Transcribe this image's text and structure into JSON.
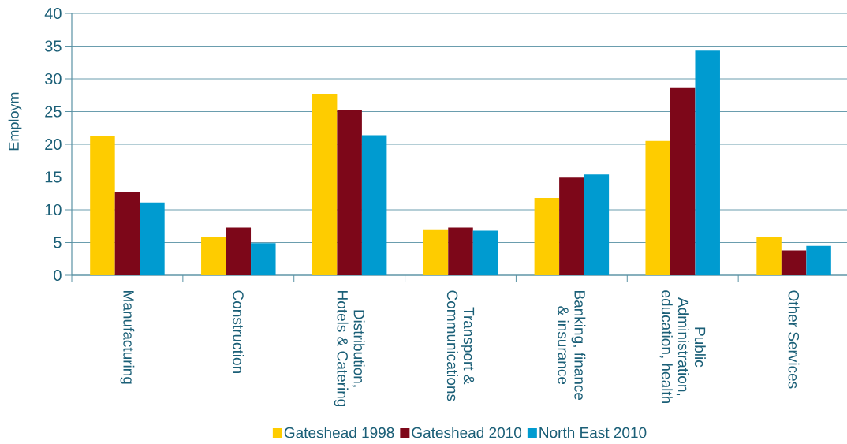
{
  "chart_data": {
    "type": "bar",
    "ylabel": "Employm",
    "categories": [
      "Manufacturing",
      "Construction",
      "Distribution, Hotels & Catering",
      "Transport & Communications",
      "Banking, finance & insurance",
      "Public Administration, education, health",
      "Other Services"
    ],
    "series": [
      {
        "name": "Gateshead 1998",
        "color": "#fecc00",
        "values": [
          21.2,
          5.9,
          27.7,
          6.9,
          11.8,
          20.5,
          5.9
        ]
      },
      {
        "name": "Gateshead 2010",
        "color": "#7d0719",
        "values": [
          12.7,
          7.3,
          25.3,
          7.3,
          14.9,
          28.7,
          3.8
        ]
      },
      {
        "name": "North East 2010",
        "color": "#009bd0",
        "values": [
          11.1,
          4.9,
          21.4,
          6.8,
          15.4,
          34.3,
          4.5
        ]
      }
    ],
    "ylim": [
      0,
      40
    ],
    "yticks": [
      0,
      5,
      10,
      15,
      20,
      25,
      30,
      35,
      40
    ],
    "grid": "y",
    "legend": "bottom"
  }
}
